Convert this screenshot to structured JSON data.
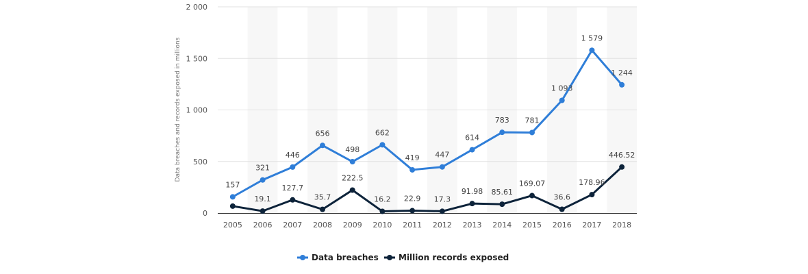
{
  "chart_data": {
    "type": "line",
    "categories": [
      "2005",
      "2006",
      "2007",
      "2008",
      "2009",
      "2010",
      "2011",
      "2012",
      "2013",
      "2014",
      "2015",
      "2016",
      "2017",
      "2018"
    ],
    "ylabel": "Data breaches and records exposed in millions",
    "ylim": [
      0,
      2000
    ],
    "yticks": [
      0,
      500,
      1000,
      1500,
      2000
    ],
    "ytick_labels": [
      "0",
      "500",
      "1 000",
      "1 500",
      "2 000"
    ],
    "grid": true,
    "legend_position": "bottom-center",
    "series": [
      {
        "name": "Data breaches",
        "color": "#2f7ed8",
        "values": [
          157,
          321,
          446,
          656,
          498,
          662,
          419,
          447,
          614,
          783,
          781,
          1093,
          1579,
          1244
        ],
        "labels": [
          "157",
          "321",
          "446",
          "656",
          "498",
          "662",
          "419",
          "447",
          "614",
          "783",
          "781",
          "1 093",
          "1 579",
          "1 244"
        ]
      },
      {
        "name": "Million records exposed",
        "color": "#0d233a",
        "values": [
          66.9,
          19.1,
          127.7,
          35.7,
          222.5,
          16.2,
          22.9,
          17.3,
          91.98,
          85.61,
          169.07,
          36.6,
          178.96,
          446.52
        ],
        "labels": [
          "",
          "19.1",
          "127.7",
          "35.7",
          "222.5",
          "16.2",
          "22.9",
          "17.3",
          "91.98",
          "85.61",
          "169.07",
          "36.6",
          "178.96",
          "446.52"
        ]
      }
    ]
  }
}
